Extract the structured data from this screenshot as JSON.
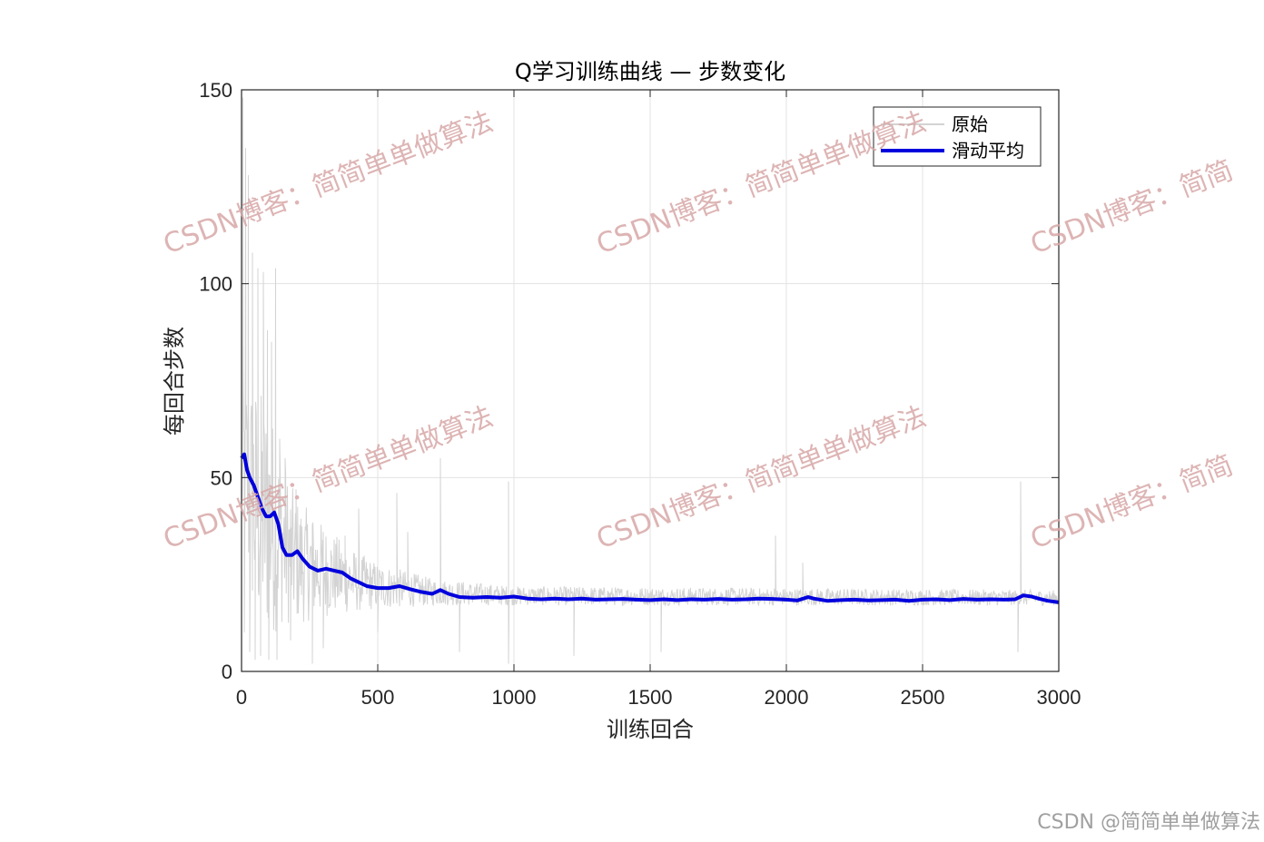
{
  "chart_data": {
    "type": "line",
    "title": "Q学习训练曲线 — 步数变化",
    "xlabel": "训练回合",
    "ylabel": "每回合步数",
    "xlim": [
      0,
      3000
    ],
    "ylim": [
      0,
      150
    ],
    "xticks": [
      0,
      500,
      1000,
      1500,
      2000,
      2500,
      3000
    ],
    "yticks": [
      0,
      50,
      100,
      150
    ],
    "xtick_labels": [
      "0",
      "500",
      "1000",
      "1500",
      "2000",
      "2500",
      "3000"
    ],
    "ytick_labels": [
      "0",
      "50",
      "100",
      "150"
    ],
    "grid": true,
    "legend_position": "top-right",
    "series": [
      {
        "name": "原始",
        "color": "#d3d3d3",
        "style": "thin-noisy",
        "spikes": [
          [
            5,
            148
          ],
          [
            15,
            135
          ],
          [
            25,
            128
          ],
          [
            40,
            108
          ],
          [
            60,
            104
          ],
          [
            80,
            103
          ],
          [
            95,
            88
          ],
          [
            110,
            85
          ],
          [
            125,
            104
          ],
          [
            140,
            60
          ],
          [
            160,
            55
          ],
          [
            200,
            47
          ],
          [
            260,
            38
          ],
          [
            300,
            36
          ],
          [
            380,
            35
          ],
          [
            430,
            42
          ],
          [
            570,
            46
          ],
          [
            610,
            36
          ],
          [
            730,
            55
          ],
          [
            980,
            49
          ],
          [
            1960,
            35
          ],
          [
            2060,
            28
          ],
          [
            2860,
            49
          ]
        ],
        "dips": [
          [
            10,
            10
          ],
          [
            30,
            5
          ],
          [
            50,
            3
          ],
          [
            70,
            4
          ],
          [
            100,
            3
          ],
          [
            130,
            3
          ],
          [
            180,
            8
          ],
          [
            260,
            2
          ],
          [
            300,
            6
          ],
          [
            500,
            10
          ],
          [
            800,
            5
          ],
          [
            980,
            2
          ],
          [
            1220,
            4
          ],
          [
            1540,
            5
          ],
          [
            2850,
            5
          ]
        ],
        "envelope": [
          [
            0,
            55,
            30,
            80
          ],
          [
            50,
            48,
            10,
            75
          ],
          [
            100,
            44,
            8,
            70
          ],
          [
            150,
            35,
            12,
            55
          ],
          [
            200,
            30,
            12,
            45
          ],
          [
            300,
            26,
            14,
            38
          ],
          [
            400,
            24,
            15,
            32
          ],
          [
            500,
            22,
            16,
            28
          ],
          [
            700,
            20,
            17,
            24
          ],
          [
            1000,
            19,
            17,
            22
          ],
          [
            3000,
            18,
            17,
            21
          ]
        ]
      },
      {
        "name": "滑动平均",
        "color": "#0000dd",
        "style": "thick",
        "points": [
          [
            0,
            55
          ],
          [
            10,
            56
          ],
          [
            20,
            52
          ],
          [
            30,
            50
          ],
          [
            45,
            48
          ],
          [
            60,
            45
          ],
          [
            75,
            42
          ],
          [
            90,
            40
          ],
          [
            105,
            40
          ],
          [
            120,
            41
          ],
          [
            135,
            38
          ],
          [
            150,
            32
          ],
          [
            165,
            30
          ],
          [
            185,
            30
          ],
          [
            205,
            31
          ],
          [
            225,
            29
          ],
          [
            250,
            27
          ],
          [
            280,
            26
          ],
          [
            310,
            26.5
          ],
          [
            340,
            26
          ],
          [
            370,
            25.5
          ],
          [
            400,
            24
          ],
          [
            430,
            23
          ],
          [
            460,
            22
          ],
          [
            500,
            21.5
          ],
          [
            540,
            21.5
          ],
          [
            580,
            22
          ],
          [
            620,
            21.2
          ],
          [
            660,
            20.5
          ],
          [
            700,
            20
          ],
          [
            730,
            21
          ],
          [
            760,
            20
          ],
          [
            800,
            19.2
          ],
          [
            850,
            19
          ],
          [
            900,
            19.2
          ],
          [
            950,
            19
          ],
          [
            1000,
            19.3
          ],
          [
            1050,
            18.8
          ],
          [
            1100,
            18.6
          ],
          [
            1150,
            18.8
          ],
          [
            1200,
            18.6
          ],
          [
            1250,
            18.8
          ],
          [
            1300,
            18.5
          ],
          [
            1350,
            18.6
          ],
          [
            1400,
            18.7
          ],
          [
            1450,
            18.5
          ],
          [
            1500,
            18.4
          ],
          [
            1550,
            18.6
          ],
          [
            1600,
            18.4
          ],
          [
            1650,
            18.6
          ],
          [
            1700,
            18.5
          ],
          [
            1750,
            18.7
          ],
          [
            1800,
            18.5
          ],
          [
            1850,
            18.6
          ],
          [
            1900,
            18.8
          ],
          [
            1950,
            18.7
          ],
          [
            2000,
            18.5
          ],
          [
            2040,
            18.3
          ],
          [
            2080,
            19.2
          ],
          [
            2100,
            18.8
          ],
          [
            2150,
            18.2
          ],
          [
            2200,
            18.4
          ],
          [
            2250,
            18.5
          ],
          [
            2300,
            18.3
          ],
          [
            2350,
            18.4
          ],
          [
            2400,
            18.5
          ],
          [
            2450,
            18.2
          ],
          [
            2500,
            18.5
          ],
          [
            2550,
            18.6
          ],
          [
            2600,
            18.4
          ],
          [
            2650,
            18.7
          ],
          [
            2700,
            18.5
          ],
          [
            2750,
            18.6
          ],
          [
            2800,
            18.5
          ],
          [
            2840,
            18.6
          ],
          [
            2870,
            19.6
          ],
          [
            2900,
            19.3
          ],
          [
            2930,
            18.7
          ],
          [
            2960,
            18.2
          ],
          [
            3000,
            17.8
          ]
        ]
      }
    ]
  },
  "watermarks": [
    "CSDN博客：简简单单做算法",
    "CSDN博客：简简单单做算法",
    "CSDN博客：简简",
    "CSDN博客：简简单单做算法",
    "CSDN博客：简简单单做算法",
    "CSDN博客：简简"
  ],
  "credit": "CSDN @简简单单做算法"
}
